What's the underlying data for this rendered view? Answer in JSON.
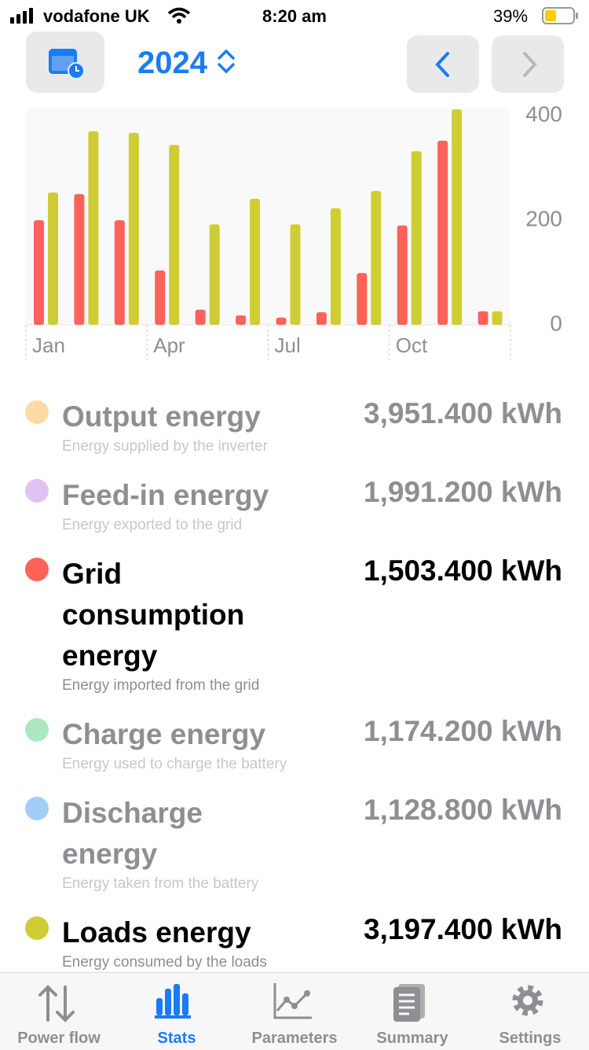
{
  "status_bar": {
    "carrier": "vodafone UK",
    "time": "8:20 am",
    "battery": "39%"
  },
  "header": {
    "year": "2024"
  },
  "chart_data": {
    "type": "bar",
    "categories": [
      "Jan",
      null,
      null,
      "Apr",
      null,
      null,
      "Jul",
      null,
      null,
      "Oct",
      null,
      null
    ],
    "series": [
      {
        "color": "#ff6259",
        "values": [
          200,
          250,
          200,
          104,
          29,
          18,
          14,
          24,
          99,
          190,
          352,
          26
        ]
      },
      {
        "color": "#cfcd35",
        "values": [
          253,
          370,
          367,
          344,
          192,
          241,
          192,
          223,
          256,
          332,
          412,
          26
        ]
      }
    ],
    "ylim": [
      0,
      415
    ],
    "yticks": [
      0,
      200,
      400
    ],
    "grid": false
  },
  "stats": [
    {
      "name": "Output energy",
      "description": "Energy supplied by the inverter",
      "value": "3,951.400 kWh",
      "color": "#fdd9a6",
      "active": false
    },
    {
      "name": "Feed-in energy",
      "description": "Energy exported to the grid",
      "value": "1,991.200 kWh",
      "color": "#e2c2f2",
      "active": false
    },
    {
      "name": "Grid consumption energy",
      "description": "Energy imported from the grid",
      "value": "1,503.400 kWh",
      "color": "#ff6259",
      "active": true
    },
    {
      "name": "Charge energy",
      "description": "Energy used to charge the battery",
      "value": "1,174.200 kWh",
      "color": "#abe8c0",
      "active": false
    },
    {
      "name": "Discharge energy",
      "description": "Energy taken from the battery",
      "value": "1,128.800 kWh",
      "color": "#a1cdf8",
      "active": false
    },
    {
      "name": "Loads energy",
      "description": "Energy consumed by the loads",
      "value": "3,197.400 kWh",
      "color": "#cfcd35",
      "active": true
    }
  ],
  "tab_bar": [
    {
      "label": "Power flow",
      "active": false
    },
    {
      "label": "Stats",
      "active": true
    },
    {
      "label": "Parameters",
      "active": false
    },
    {
      "label": "Summary",
      "active": false
    },
    {
      "label": "Settings",
      "active": false
    }
  ]
}
